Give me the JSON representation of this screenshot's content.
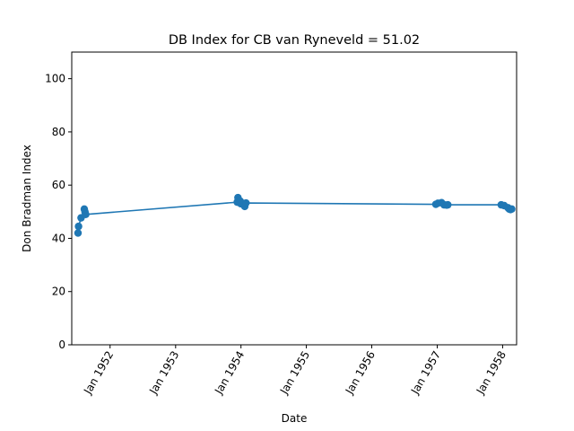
{
  "chart_data": {
    "type": "line",
    "title": "DB Index for CB van Ryneveld = 51.02",
    "xlabel": "Date",
    "ylabel": "Don Bradman Index",
    "ylim": [
      0,
      110
    ],
    "xlim": [
      "1951-06-01",
      "1958-03-20"
    ],
    "y_ticks": [
      {
        "value": 0,
        "label": "0"
      },
      {
        "value": 20,
        "label": "20"
      },
      {
        "value": 40,
        "label": "40"
      },
      {
        "value": 60,
        "label": "60"
      },
      {
        "value": 80,
        "label": "80"
      },
      {
        "value": 100,
        "label": "100"
      }
    ],
    "x_ticks": [
      {
        "value": "1952-01-01",
        "label": "Jan 1952"
      },
      {
        "value": "1953-01-01",
        "label": "Jan 1953"
      },
      {
        "value": "1954-01-01",
        "label": "Jan 1954"
      },
      {
        "value": "1955-01-01",
        "label": "Jan 1955"
      },
      {
        "value": "1956-01-01",
        "label": "Jan 1956"
      },
      {
        "value": "1957-01-01",
        "label": "Jan 1957"
      },
      {
        "value": "1958-01-01",
        "label": "Jan 1958"
      }
    ],
    "color": "#1f77b4",
    "grid": false,
    "series": [
      {
        "points": [
          {
            "x": "1951-07-06",
            "y": 42.0
          },
          {
            "x": "1951-07-09",
            "y": 44.5
          },
          {
            "x": "1951-07-23",
            "y": 47.7
          },
          {
            "x": "1951-08-10",
            "y": 51.0
          },
          {
            "x": "1951-08-14",
            "y": 50.0
          },
          {
            "x": "1951-08-18",
            "y": 49.0
          },
          {
            "x": "1953-12-11",
            "y": 53.6
          },
          {
            "x": "1953-12-15",
            "y": 55.3
          },
          {
            "x": "1953-12-28",
            "y": 54.0
          },
          {
            "x": "1953-12-31",
            "y": 53.0
          },
          {
            "x": "1954-01-22",
            "y": 52.0
          },
          {
            "x": "1954-01-29",
            "y": 53.3
          },
          {
            "x": "1956-12-24",
            "y": 52.8
          },
          {
            "x": "1957-01-05",
            "y": 53.2
          },
          {
            "x": "1957-01-25",
            "y": 53.4
          },
          {
            "x": "1957-02-08",
            "y": 52.6
          },
          {
            "x": "1957-02-22",
            "y": 52.5
          },
          {
            "x": "1957-03-01",
            "y": 52.6
          },
          {
            "x": "1957-12-24",
            "y": 52.6
          },
          {
            "x": "1958-01-10",
            "y": 52.3
          },
          {
            "x": "1958-01-31",
            "y": 51.5
          },
          {
            "x": "1958-02-07",
            "y": 51.0
          },
          {
            "x": "1958-02-14",
            "y": 50.8
          },
          {
            "x": "1958-02-21",
            "y": 51.02
          }
        ]
      }
    ]
  }
}
